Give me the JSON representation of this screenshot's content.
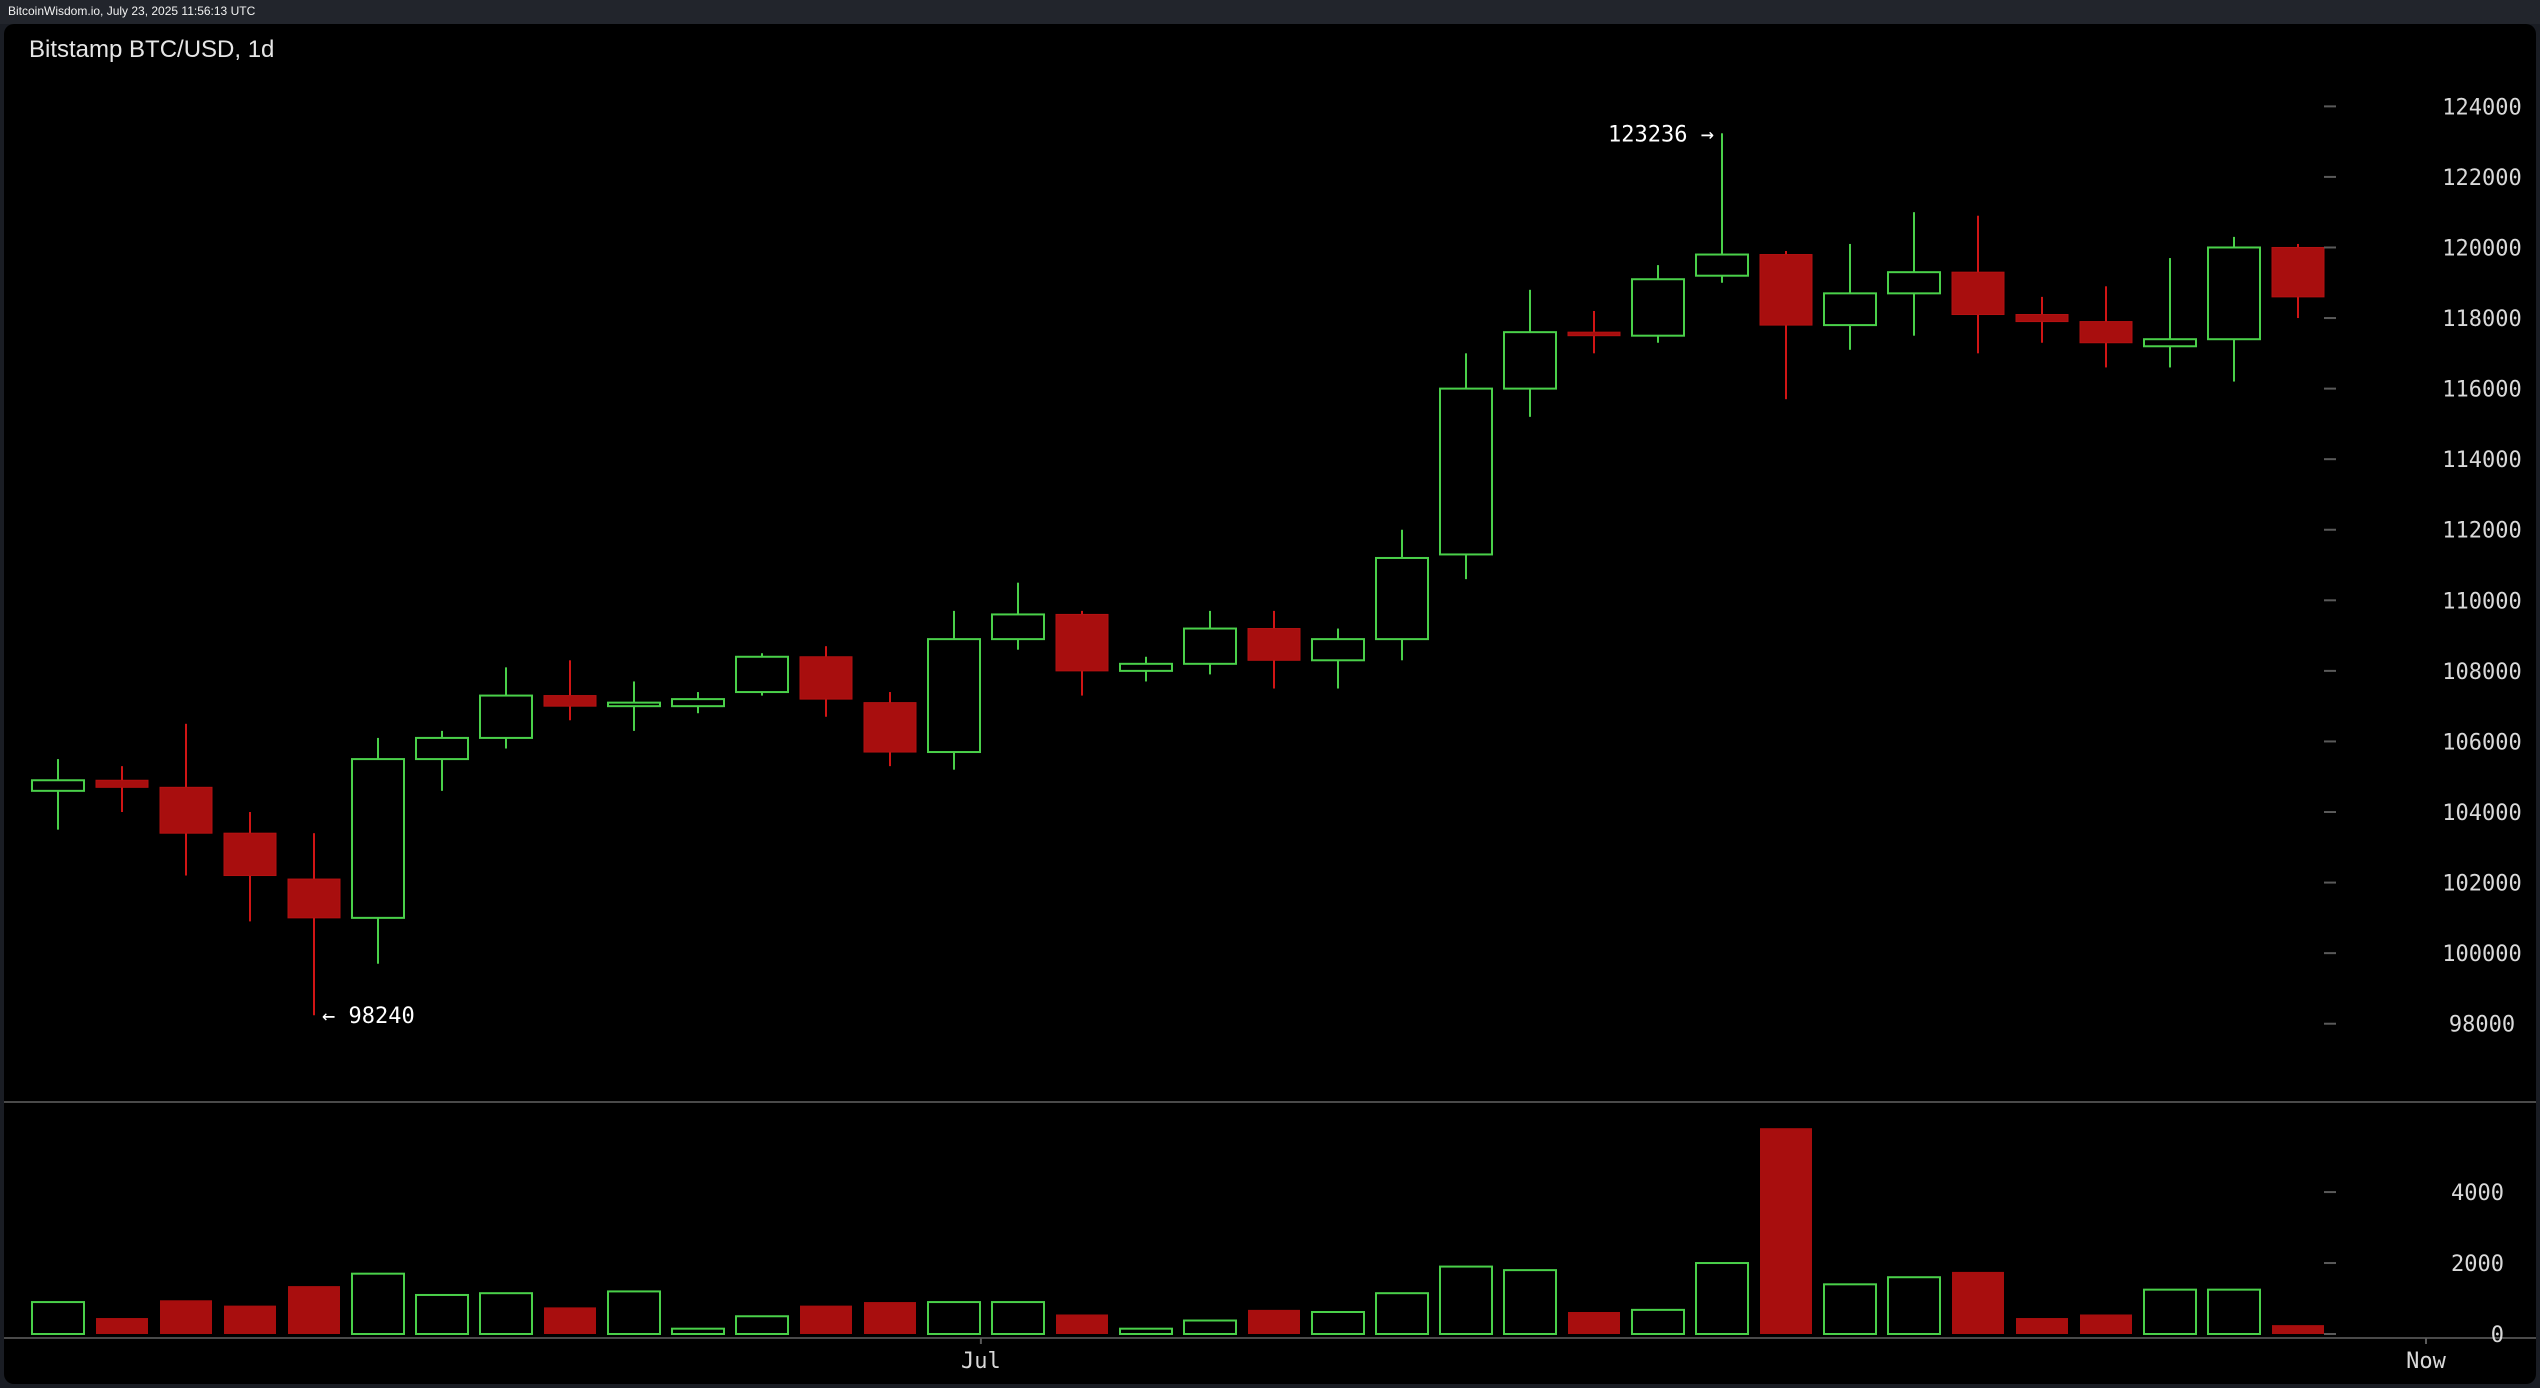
{
  "header": {
    "source": "BitcoinWisdom.io, July 23, 2025 11:56:13 UTC"
  },
  "chart_data": {
    "type": "candlestick",
    "title": "Bitstamp BTC/USD, 1d",
    "price_axis": {
      "ticks": [
        98000,
        100000,
        102000,
        104000,
        106000,
        108000,
        110000,
        112000,
        114000,
        116000,
        118000,
        120000,
        122000,
        124000
      ],
      "range": [
        97000,
        125200
      ],
      "position": "right"
    },
    "volume_axis": {
      "ticks": [
        0,
        2000,
        4000
      ],
      "range": [
        0,
        6200
      ],
      "position": "right"
    },
    "x_labels": [
      {
        "text": "Jul",
        "index": 14.42
      },
      {
        "text": "Now",
        "index": 37
      }
    ],
    "annotations": [
      {
        "text": "123236 →",
        "value": 123236,
        "index": 26,
        "side": "left"
      },
      {
        "text": "← 98240",
        "value": 98240,
        "index": 4,
        "side": "right"
      }
    ],
    "up_color": "#4ad04a",
    "down_color": "#a80e0e",
    "candles": [
      {
        "open": 104600,
        "close": 104900,
        "high": 105500,
        "low": 103500,
        "volume": 900
      },
      {
        "open": 104900,
        "close": 104700,
        "high": 105300,
        "low": 104000,
        "volume": 450
      },
      {
        "open": 104700,
        "close": 103400,
        "high": 106500,
        "low": 102200,
        "volume": 950
      },
      {
        "open": 103400,
        "close": 102200,
        "high": 104000,
        "low": 100900,
        "volume": 800
      },
      {
        "open": 102100,
        "close": 101000,
        "high": 103400,
        "low": 98240,
        "volume": 1350
      },
      {
        "open": 101000,
        "close": 105500,
        "high": 106100,
        "low": 99700,
        "volume": 1700
      },
      {
        "open": 105500,
        "close": 106100,
        "high": 106300,
        "low": 104600,
        "volume": 1100
      },
      {
        "open": 106100,
        "close": 107300,
        "high": 108100,
        "low": 105800,
        "volume": 1150
      },
      {
        "open": 107300,
        "close": 107000,
        "high": 108300,
        "low": 106600,
        "volume": 750
      },
      {
        "open": 107000,
        "close": 107100,
        "high": 107700,
        "low": 106300,
        "volume": 1200
      },
      {
        "open": 107000,
        "close": 107200,
        "high": 107400,
        "low": 106800,
        "volume": 150
      },
      {
        "open": 107400,
        "close": 108400,
        "high": 108500,
        "low": 107300,
        "volume": 500
      },
      {
        "open": 108400,
        "close": 107200,
        "high": 108700,
        "low": 106700,
        "volume": 800
      },
      {
        "open": 107100,
        "close": 105700,
        "high": 107400,
        "low": 105300,
        "volume": 900
      },
      {
        "open": 105700,
        "close": 108900,
        "high": 109700,
        "low": 105200,
        "volume": 900
      },
      {
        "open": 108900,
        "close": 109600,
        "high": 110500,
        "low": 108600,
        "volume": 900
      },
      {
        "open": 109600,
        "close": 108000,
        "high": 109700,
        "low": 107300,
        "volume": 550
      },
      {
        "open": 108000,
        "close": 108200,
        "high": 108400,
        "low": 107700,
        "volume": 150
      },
      {
        "open": 108200,
        "close": 109200,
        "high": 109700,
        "low": 107900,
        "volume": 380
      },
      {
        "open": 109200,
        "close": 108300,
        "high": 109700,
        "low": 107500,
        "volume": 680
      },
      {
        "open": 108300,
        "close": 108900,
        "high": 109200,
        "low": 107500,
        "volume": 620
      },
      {
        "open": 108900,
        "close": 111200,
        "high": 112000,
        "low": 108300,
        "volume": 1150
      },
      {
        "open": 111300,
        "close": 116000,
        "high": 117000,
        "low": 110600,
        "volume": 1900
      },
      {
        "open": 116000,
        "close": 117600,
        "high": 118800,
        "low": 115200,
        "volume": 1800
      },
      {
        "open": 117600,
        "close": 117500,
        "high": 118200,
        "low": 117000,
        "volume": 620
      },
      {
        "open": 117500,
        "close": 119100,
        "high": 119500,
        "low": 117300,
        "volume": 680
      },
      {
        "open": 119200,
        "close": 119800,
        "high": 123236,
        "low": 119000,
        "volume": 2000
      },
      {
        "open": 119800,
        "close": 117800,
        "high": 119900,
        "low": 115700,
        "volume": 5800
      },
      {
        "open": 117800,
        "close": 118700,
        "high": 120100,
        "low": 117100,
        "volume": 1400
      },
      {
        "open": 118700,
        "close": 119300,
        "high": 121000,
        "low": 117500,
        "volume": 1600
      },
      {
        "open": 119300,
        "close": 118100,
        "high": 120900,
        "low": 117000,
        "volume": 1750
      },
      {
        "open": 118100,
        "close": 117900,
        "high": 118600,
        "low": 117300,
        "volume": 450
      },
      {
        "open": 117900,
        "close": 117300,
        "high": 118900,
        "low": 116600,
        "volume": 550
      },
      {
        "open": 117200,
        "close": 117400,
        "high": 119700,
        "low": 116600,
        "volume": 1250
      },
      {
        "open": 117400,
        "close": 120000,
        "high": 120300,
        "low": 116200,
        "volume": 1250
      },
      {
        "open": 120000,
        "close": 118600,
        "high": 120100,
        "low": 118000,
        "volume": 250
      }
    ]
  }
}
